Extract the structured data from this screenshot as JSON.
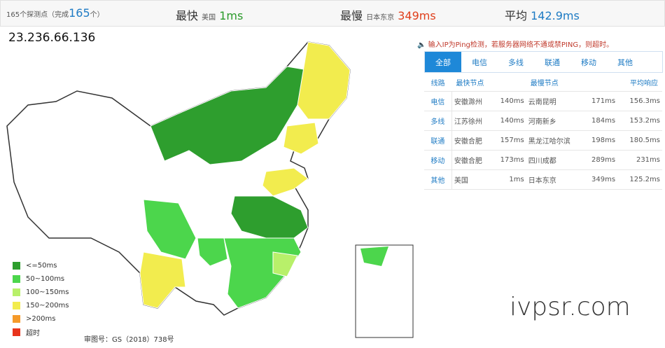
{
  "header": {
    "probes_prefix": "165个探测点（完成",
    "probes_done": "165",
    "probes_suffix": "个）",
    "fastest_label": "最快",
    "fastest_node": "美国",
    "fastest_value": "1ms",
    "slowest_label": "最慢",
    "slowest_node": "日本东京",
    "slowest_value": "349ms",
    "average_label": "平均",
    "average_value": "142.9ms"
  },
  "ip": "23.236.66.136",
  "notice": "输入IP为Ping检测，若服务器网络不通或禁PING，则超时。",
  "tabs": [
    "全部",
    "电信",
    "多线",
    "联通",
    "移动",
    "其他"
  ],
  "table": {
    "headers": [
      "线路",
      "最快节点",
      "最慢节点",
      "平均响应"
    ],
    "rows": [
      [
        "电信",
        "安徽滁州",
        "140ms",
        "云南昆明",
        "171ms",
        "156.3ms"
      ],
      [
        "多线",
        "江苏徐州",
        "140ms",
        "河南新乡",
        "184ms",
        "153.2ms"
      ],
      [
        "联通",
        "安徽合肥",
        "157ms",
        "黑龙江哈尔滨",
        "198ms",
        "180.5ms"
      ],
      [
        "移动",
        "安徽合肥",
        "173ms",
        "四川成都",
        "289ms",
        "231ms"
      ],
      [
        "其他",
        "美国",
        "1ms",
        "日本东京",
        "349ms",
        "125.2ms"
      ]
    ]
  },
  "legend": [
    {
      "label": "<=50ms",
      "color": "#2e9e2e"
    },
    {
      "label": "50~100ms",
      "color": "#4cd64c"
    },
    {
      "label": "100~150ms",
      "color": "#b8f06a"
    },
    {
      "label": "150~200ms",
      "color": "#f2ec4e"
    },
    {
      "label": ">200ms",
      "color": "#f59a2a"
    },
    {
      "label": "超时",
      "color": "#e8341c"
    }
  ],
  "map_caption": "审图号：GS（2018）738号",
  "watermark": "ivpsr.com"
}
